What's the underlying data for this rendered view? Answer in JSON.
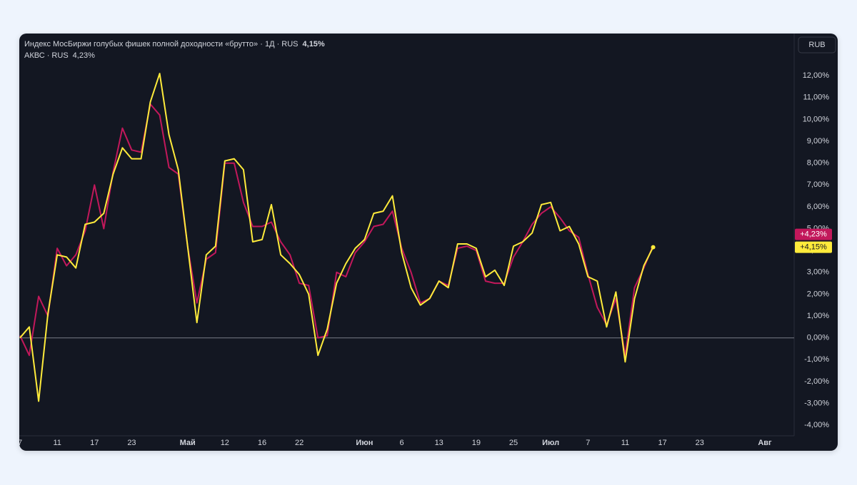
{
  "chart_data": {
    "type": "line",
    "categories": [
      "7",
      null,
      null,
      null,
      "11",
      null,
      null,
      null,
      "17",
      null,
      null,
      null,
      "23",
      null,
      null,
      null,
      null,
      null,
      "Май",
      null,
      null,
      null,
      "12",
      null,
      null,
      null,
      "16",
      null,
      null,
      null,
      "22",
      null,
      null,
      null,
      null,
      null,
      null,
      "Июн",
      null,
      null,
      null,
      "6",
      null,
      null,
      null,
      "13",
      null,
      null,
      null,
      "19",
      null,
      null,
      null,
      "25",
      null,
      null,
      null,
      "Июл",
      null,
      null,
      null,
      "7",
      null,
      null,
      null,
      "11",
      null,
      null,
      null,
      "17",
      null,
      null,
      null,
      "23",
      null,
      null,
      null,
      null,
      null,
      null,
      "Авг"
    ],
    "series": [
      {
        "name": "АКВС · RUS",
        "color": "#c2185b",
        "legend_value": "4,23%",
        "price_label": "+4,23%",
        "values": [
          0.1,
          -0.8,
          1.9,
          1.0,
          4.1,
          3.3,
          3.8,
          4.9,
          7.0,
          5.0,
          7.6,
          9.6,
          8.6,
          8.5,
          10.7,
          10.2,
          7.8,
          7.5,
          4.2,
          1.6,
          3.6,
          3.9,
          8.0,
          8.0,
          6.2,
          5.1,
          5.1,
          5.3,
          4.4,
          3.8,
          2.5,
          2.4,
          0.0,
          0.1,
          3.0,
          2.8,
          3.9,
          4.4,
          5.1,
          5.2,
          5.8,
          4.1,
          3.0,
          1.6,
          1.8,
          2.6,
          2.4,
          4.1,
          4.2,
          4.0,
          2.6,
          2.5,
          2.5,
          3.7,
          4.4,
          5.2,
          5.7,
          6.0,
          5.5,
          4.9,
          4.6,
          2.9,
          1.4,
          0.6,
          1.8,
          -0.8,
          2.3,
          3.2,
          4.23,
          null,
          null,
          null,
          null,
          null,
          null,
          null,
          null,
          null,
          null,
          null,
          null
        ]
      },
      {
        "name": "Индекс МосБиржи голубых фишек полной доходности «брутто» · 1Д · RUS",
        "color": "#ffeb3b",
        "legend_value": "4,15%",
        "price_label": "+4,15%",
        "values": [
          0.0,
          0.5,
          -2.9,
          1.1,
          3.8,
          3.7,
          3.2,
          5.2,
          5.3,
          5.7,
          7.5,
          8.7,
          8.2,
          8.2,
          10.8,
          12.1,
          9.3,
          7.7,
          4.2,
          0.7,
          3.8,
          4.2,
          8.1,
          8.2,
          7.7,
          4.4,
          4.5,
          6.1,
          3.8,
          3.4,
          2.9,
          2.0,
          -0.8,
          0.4,
          2.5,
          3.4,
          4.1,
          4.5,
          5.7,
          5.8,
          6.5,
          3.9,
          2.3,
          1.5,
          1.8,
          2.6,
          2.3,
          4.3,
          4.3,
          4.1,
          2.8,
          3.1,
          2.4,
          4.2,
          4.4,
          4.8,
          6.1,
          6.2,
          4.9,
          5.1,
          4.3,
          2.8,
          2.6,
          0.5,
          2.1,
          -1.1,
          1.8,
          3.3,
          4.15,
          null,
          null,
          null,
          null,
          null,
          null,
          null,
          null,
          null,
          null,
          null,
          null
        ]
      }
    ],
    "ylim": [
      -4.45,
      13.9
    ],
    "yticks": [
      {
        "value": -4,
        "label": "-4,00%"
      },
      {
        "value": -3,
        "label": "-3,00%"
      },
      {
        "value": -2,
        "label": "-2,00%"
      },
      {
        "value": -1,
        "label": "-1,00%"
      },
      {
        "value": 0,
        "label": "0,00%"
      },
      {
        "value": 1,
        "label": "1,00%"
      },
      {
        "value": 2,
        "label": "2,00%"
      },
      {
        "value": 3,
        "label": "3,00%"
      },
      {
        "value": 4,
        "label": "4,00%"
      },
      {
        "value": 5,
        "label": "5,00%"
      },
      {
        "value": 6,
        "label": "6,00%"
      },
      {
        "value": 7,
        "label": "7,00%"
      },
      {
        "value": 8,
        "label": "8,00%"
      },
      {
        "value": 9,
        "label": "9,00%"
      },
      {
        "value": 10,
        "label": "10,00%"
      },
      {
        "value": 11,
        "label": "11,00%"
      },
      {
        "value": 12,
        "label": "12,00%"
      }
    ],
    "grid": false,
    "zero_line": true,
    "currency_button": "RUB"
  }
}
